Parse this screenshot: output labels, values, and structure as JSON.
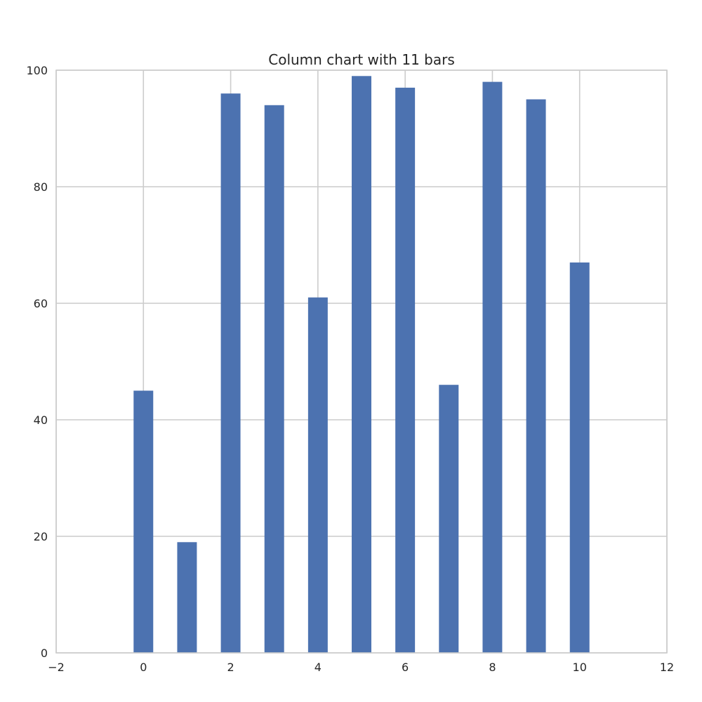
{
  "chart_data": {
    "type": "bar",
    "title": "Column chart with 11 bars",
    "xlabel": "",
    "ylabel": "",
    "x": [
      0,
      1,
      2,
      3,
      4,
      5,
      6,
      7,
      8,
      9,
      10
    ],
    "values": [
      45,
      19,
      96,
      94,
      61,
      99,
      97,
      46,
      98,
      95,
      67
    ],
    "xlim": [
      -2,
      12
    ],
    "ylim": [
      0,
      100
    ],
    "xticks": [
      -2,
      0,
      2,
      4,
      6,
      8,
      10,
      12
    ],
    "xtick_labels": [
      "−2",
      "0",
      "2",
      "4",
      "6",
      "8",
      "10",
      "12"
    ],
    "yticks": [
      0,
      20,
      40,
      60,
      80,
      100
    ],
    "ytick_labels": [
      "0",
      "20",
      "40",
      "60",
      "80",
      "100"
    ],
    "bar_width": 0.45,
    "bar_color": "#4c72b0",
    "grid": true
  }
}
